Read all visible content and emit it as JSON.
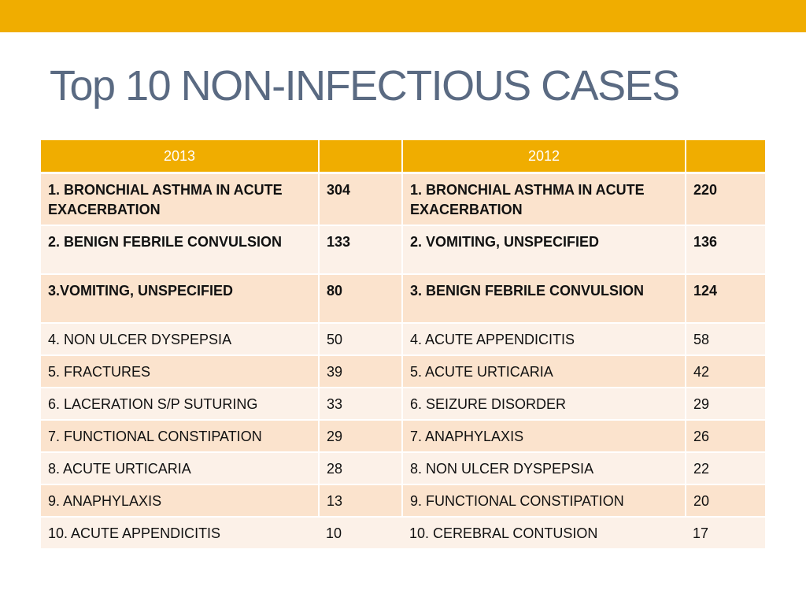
{
  "slide": {
    "title": "Top 10 NON-INFECTIOUS CASES",
    "accent_color": "#f0ad00"
  },
  "table": {
    "headers": [
      "2013",
      "",
      "2012",
      ""
    ],
    "rows": [
      {
        "c2013": "1. BRONCHIAL ASTHMA IN ACUTE EXACERBATION",
        "n2013": "304",
        "c2012": "1. BRONCHIAL ASTHMA IN ACUTE EXACERBATION",
        "n2012": "220"
      },
      {
        "c2013": "2. BENIGN FEBRILE CONVULSION",
        "n2013": "133",
        "c2012": "2. VOMITING, UNSPECIFIED",
        "n2012": "136"
      },
      {
        "c2013": "3.VOMITING, UNSPECIFIED",
        "n2013": "80",
        "c2012": "3. BENIGN FEBRILE CONVULSION",
        "n2012": "124"
      },
      {
        "c2013": "4. NON ULCER DYSPEPSIA",
        "n2013": "50",
        "c2012": "4. ACUTE APPENDICITIS",
        "n2012": "58"
      },
      {
        "c2013": "5. FRACTURES",
        "n2013": "39",
        "c2012": "5. ACUTE URTICARIA",
        "n2012": "42"
      },
      {
        "c2013": "6. LACERATION S/P SUTURING",
        "n2013": "33",
        "c2012": "6. SEIZURE DISORDER",
        "n2012": "29"
      },
      {
        "c2013": "7. FUNCTIONAL CONSTIPATION",
        "n2013": "29",
        "c2012": "7. ANAPHYLAXIS",
        "n2012": "26"
      },
      {
        "c2013": "8. ACUTE URTICARIA",
        "n2013": "28",
        "c2012": "8. NON ULCER DYSPEPSIA",
        "n2012": "22"
      },
      {
        "c2013": "9. ANAPHYLAXIS",
        "n2013": "13",
        "c2012": "9. FUNCTIONAL CONSTIPATION",
        "n2012": "20"
      },
      {
        "c2013": "10. ACUTE APPENDICITIS",
        "n2013": "10",
        "c2012": "10. CEREBRAL CONTUSION",
        "n2012": "17"
      }
    ]
  }
}
